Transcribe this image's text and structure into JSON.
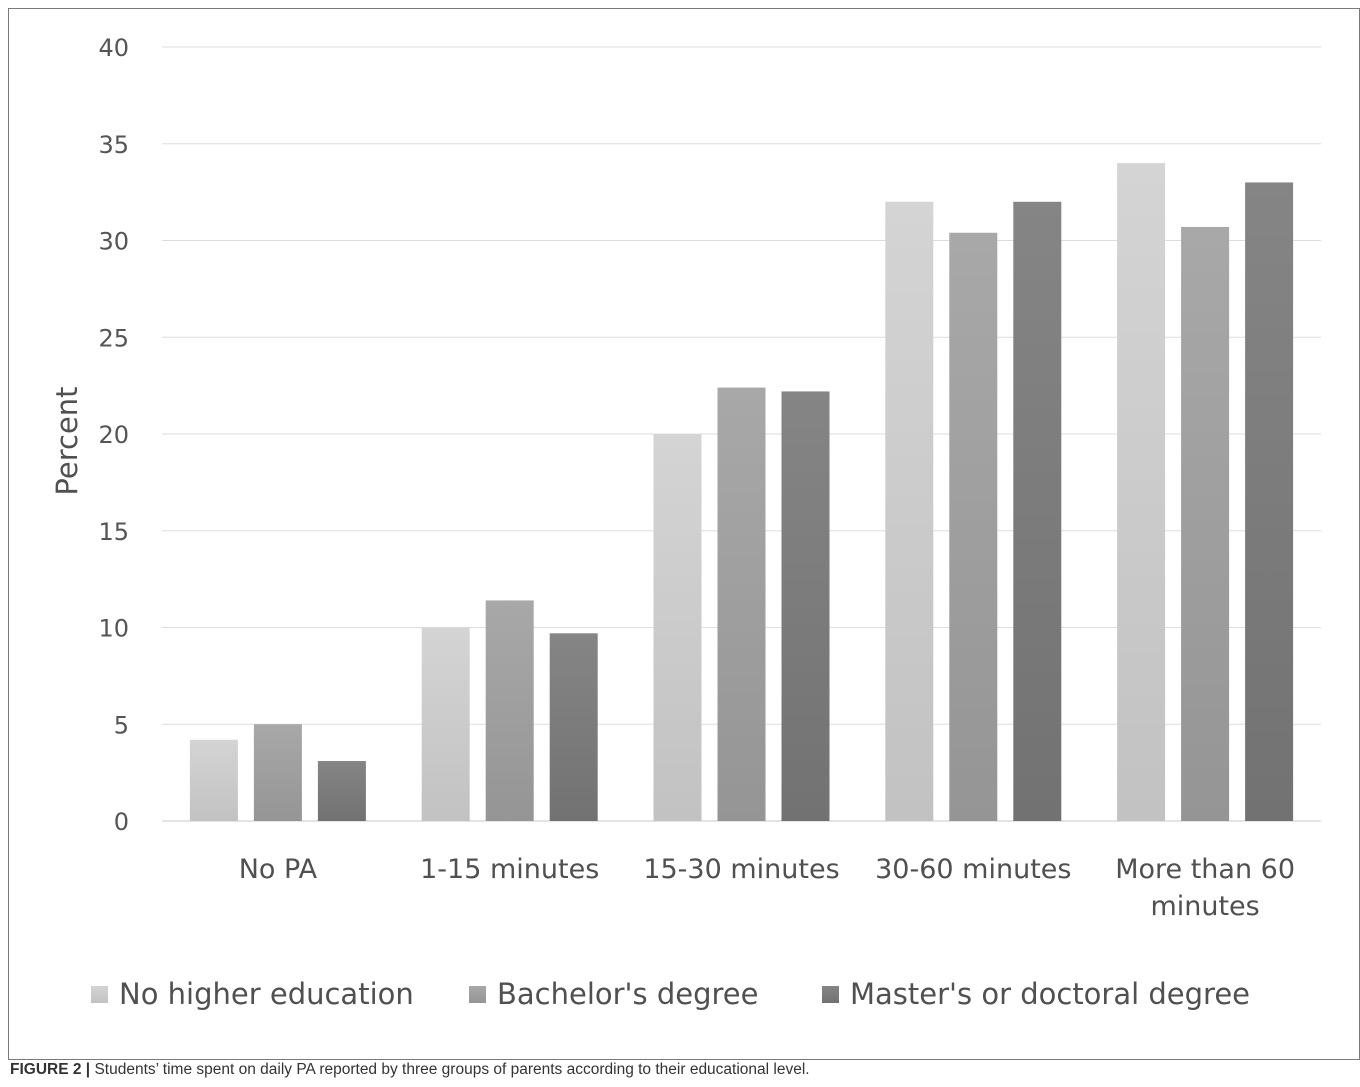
{
  "chart_data": {
    "type": "bar",
    "ylabel": "Percent",
    "ylim": [
      0,
      40
    ],
    "yticks": [
      0,
      5,
      10,
      15,
      20,
      25,
      30,
      35,
      40
    ],
    "grid": true,
    "legend_position": "bottom",
    "categories": [
      [
        "No PA"
      ],
      [
        "1-15 minutes"
      ],
      [
        "15-30 minutes"
      ],
      [
        "30-60 minutes"
      ],
      [
        "More than 60",
        "minutes"
      ]
    ],
    "series": [
      {
        "name": "No higher education",
        "color": "#d2d2d2",
        "values": [
          4.2,
          10.0,
          20.0,
          32.0,
          34.0
        ]
      },
      {
        "name": "Bachelor's degree",
        "color": "#a6a6a6",
        "values": [
          5.0,
          11.4,
          22.4,
          30.4,
          30.7
        ]
      },
      {
        "name": "Master's or doctoral degree",
        "color": "#838383",
        "values": [
          3.1,
          9.7,
          22.2,
          32.0,
          33.0
        ]
      }
    ]
  },
  "caption": {
    "label": "FIGURE 2 |",
    "text": " Students’ time spent on daily PA reported by three groups of parents according to their educational level."
  }
}
